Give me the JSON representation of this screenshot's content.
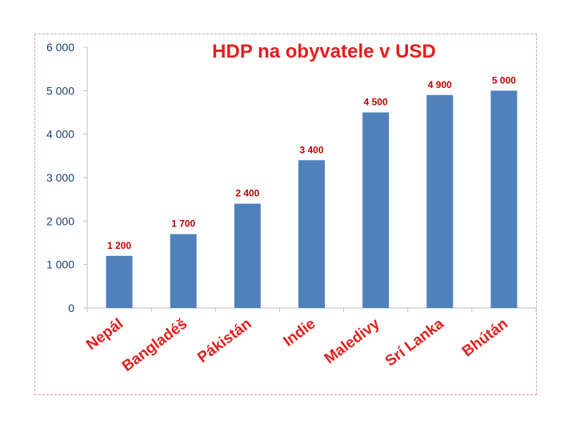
{
  "colors": {
    "bar": "#4f81bd",
    "title": "#e41e1e",
    "data_label": "#c00000",
    "category_label": "#e41e1e",
    "axis_text": "#1f3f6e",
    "axis_line": "#bfbfbf"
  },
  "chart_data": {
    "type": "bar",
    "title": "HDP na obyvatele v USD",
    "xlabel": "",
    "ylabel": "",
    "ylim": [
      0,
      6000
    ],
    "grid": false,
    "legend": "none",
    "yticks": [
      0,
      1000,
      2000,
      3000,
      4000,
      5000,
      6000
    ],
    "ytick_labels": [
      "0",
      "1 000",
      "2 000",
      "3 000",
      "4 000",
      "5 000",
      "6 000"
    ],
    "categories": [
      "Nepál",
      "Bangladéš",
      "Pákistán",
      "Indie",
      "Maledivy",
      "Srí Lanka",
      "Bhútán"
    ],
    "values": [
      1200,
      1700,
      2400,
      3400,
      4500,
      4900,
      5000
    ],
    "data_labels": [
      "1 200",
      "1 700",
      "2 400",
      "3 400",
      "4 500",
      "4 900",
      "5 000"
    ]
  }
}
